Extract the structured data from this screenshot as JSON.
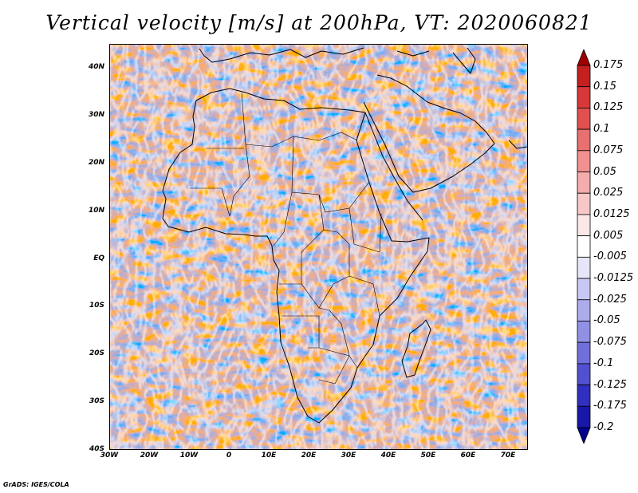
{
  "title": "Vertical velocity [m/s] at 200hPa, VT: 2020060821",
  "credit": "GrADS: IGES/COLA",
  "map": {
    "lon_range": [
      -30,
      75
    ],
    "lat_range": [
      -40,
      45
    ],
    "lat_ticks": [
      "40N",
      "30N",
      "20N",
      "10N",
      "EQ",
      "10S",
      "20S",
      "30S",
      "40S"
    ],
    "lon_ticks": [
      "30W",
      "20W",
      "10W",
      "0",
      "10E",
      "20E",
      "30E",
      "40E",
      "50E",
      "60E",
      "70E"
    ],
    "field_colors": {
      "positive": "#d03030",
      "negative": "#5050d8",
      "neutral": "#ffffff"
    }
  },
  "colorbar": {
    "labels": [
      "0.175",
      "0.15",
      "0.125",
      "0.1",
      "0.075",
      "0.05",
      "0.025",
      "0.0125",
      "0.005",
      "-0.005",
      "-0.0125",
      "-0.025",
      "-0.05",
      "-0.075",
      "-0.1",
      "-0.125",
      "-0.175",
      "-0.2"
    ],
    "colors": [
      "#a00000",
      "#c42020",
      "#d83838",
      "#e05050",
      "#e87070",
      "#f09090",
      "#f4acac",
      "#f8c8c8",
      "#fce6e6",
      "#ffffff",
      "#e6e6fa",
      "#c8c8f4",
      "#acacec",
      "#9090e4",
      "#7070dc",
      "#5050d0",
      "#3030c0",
      "#1818a8",
      "#000090"
    ]
  }
}
